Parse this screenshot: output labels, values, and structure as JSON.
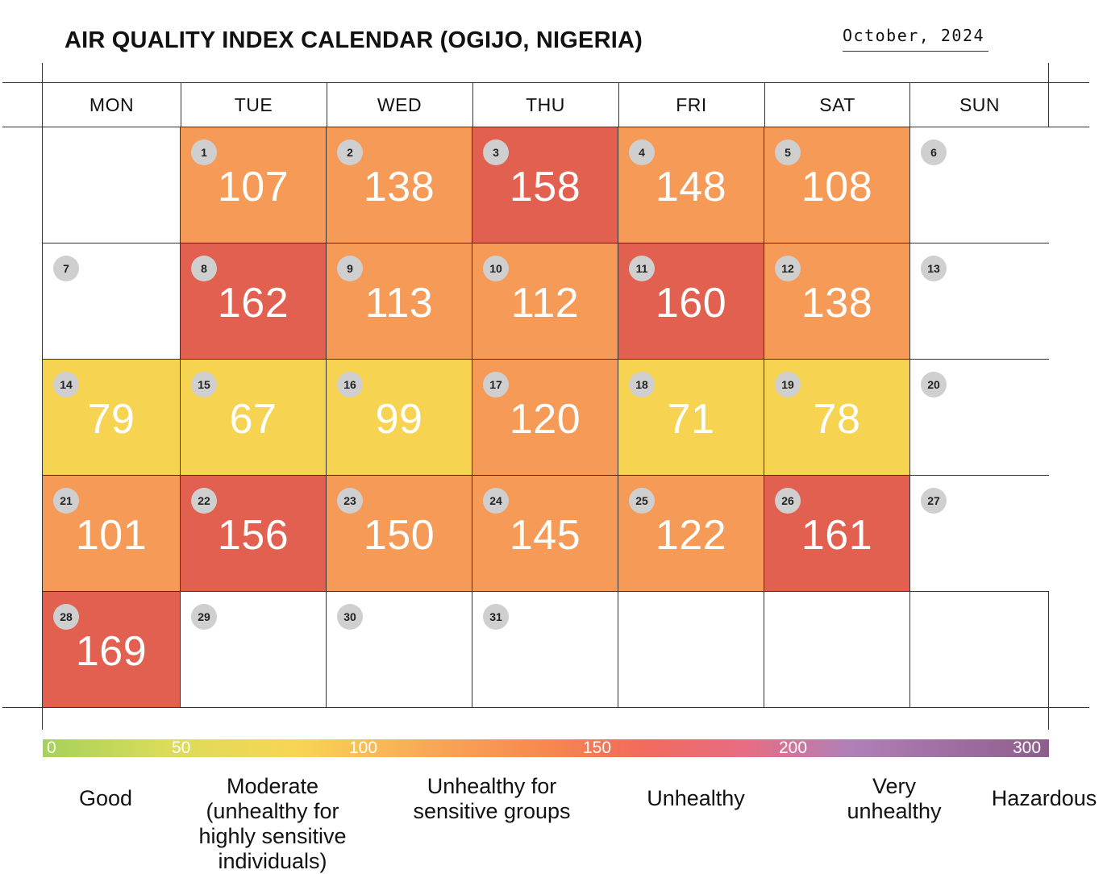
{
  "header": {
    "title": "AIR QUALITY INDEX CALENDAR (OGIJO, NIGERIA)",
    "month": "October, 2024"
  },
  "chart_data": {
    "type": "heatmap",
    "title": "AIR QUALITY INDEX CALENDAR (OGIJO, NIGERIA)",
    "subtitle": "October, 2024",
    "weekdays": [
      "MON",
      "TUE",
      "WED",
      "THU",
      "FRI",
      "SAT",
      "SUN"
    ],
    "first_weekday_index": 1,
    "days": [
      {
        "day": "1",
        "aqi": 107
      },
      {
        "day": "2",
        "aqi": 138
      },
      {
        "day": "3",
        "aqi": 158
      },
      {
        "day": "4",
        "aqi": 148
      },
      {
        "day": "5",
        "aqi": 108
      },
      {
        "day": "6",
        "aqi": null
      },
      {
        "day": "7",
        "aqi": null
      },
      {
        "day": "8",
        "aqi": 162
      },
      {
        "day": "9",
        "aqi": 113
      },
      {
        "day": "10",
        "aqi": 112
      },
      {
        "day": "11",
        "aqi": 160
      },
      {
        "day": "12",
        "aqi": 138
      },
      {
        "day": "13",
        "aqi": null
      },
      {
        "day": "14",
        "aqi": 79
      },
      {
        "day": "15",
        "aqi": 67
      },
      {
        "day": "16",
        "aqi": 99
      },
      {
        "day": "17",
        "aqi": 120
      },
      {
        "day": "18",
        "aqi": 71
      },
      {
        "day": "19",
        "aqi": 78
      },
      {
        "day": "20",
        "aqi": null
      },
      {
        "day": "21",
        "aqi": 101
      },
      {
        "day": "22",
        "aqi": 156
      },
      {
        "day": "23",
        "aqi": 150
      },
      {
        "day": "24",
        "aqi": 145
      },
      {
        "day": "25",
        "aqi": 122
      },
      {
        "day": "26",
        "aqi": 161
      },
      {
        "day": "27",
        "aqi": null
      },
      {
        "day": "28",
        "aqi": 169
      },
      {
        "day": "29",
        "aqi": null
      },
      {
        "day": "30",
        "aqi": null
      },
      {
        "day": "31",
        "aqi": null
      }
    ],
    "color_bins": [
      {
        "min": 51,
        "max": 100,
        "color": "#f7d352"
      },
      {
        "min": 101,
        "max": 150,
        "color": "#f59a57"
      },
      {
        "min": 151,
        "max": 200,
        "color": "#e2604f"
      }
    ],
    "scale": {
      "ticks": [
        {
          "label": "0",
          "value": 0
        },
        {
          "label": "50",
          "value": 50
        },
        {
          "label": "100",
          "value": 100
        },
        {
          "label": "150",
          "value": 150
        },
        {
          "label": "200",
          "value": 200
        },
        {
          "label": "300",
          "value": 300
        }
      ],
      "categories": [
        "Good",
        "Moderate (unhealthy for highly sensitive individuals)",
        "Unhealthy for sensitive groups",
        "Unhealthy",
        "Very unhealthy",
        "Hazardous"
      ]
    }
  }
}
